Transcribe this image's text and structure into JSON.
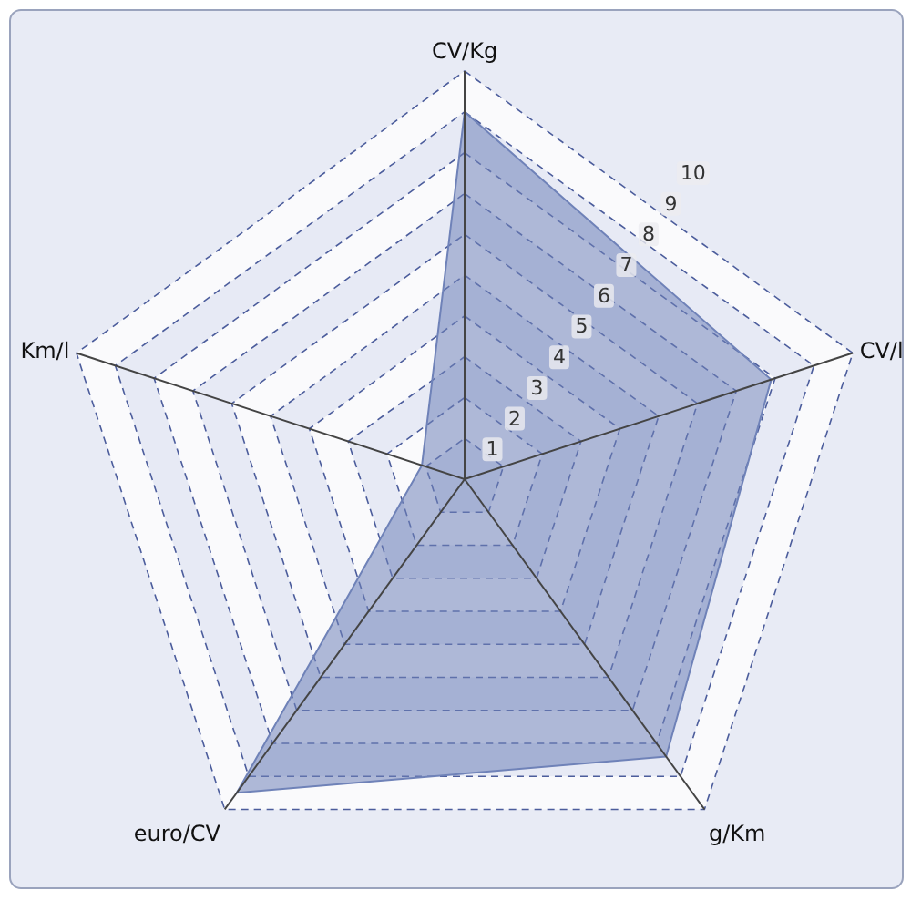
{
  "chart_data": {
    "type": "radar",
    "categories": [
      "CV/Kg",
      "CV/l",
      "g/Km",
      "euro/CV",
      "Km/l"
    ],
    "series": [
      {
        "color": "#6f82b8",
        "values": [
          9,
          7.9,
          8.4,
          9.5,
          1.1
        ]
      }
    ],
    "ylim": [
      0,
      10
    ],
    "yticks": [
      1,
      2,
      3,
      4,
      5,
      6,
      7,
      8,
      9,
      10
    ],
    "grid": true
  }
}
